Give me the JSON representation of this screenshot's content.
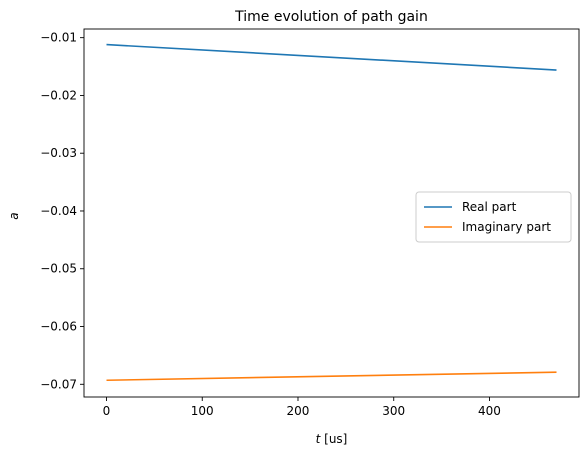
{
  "chart_data": {
    "type": "line",
    "title": "Time evolution of path gain",
    "xlabel_var": "t",
    "xlabel_unit": " [us]",
    "ylabel": "a",
    "xlim": [
      -23.5,
      493.5
    ],
    "ylim": [
      -0.0722,
      -0.0085
    ],
    "xticks": [
      0,
      100,
      200,
      300,
      400
    ],
    "yticks": [
      -0.07,
      -0.06,
      -0.05,
      -0.04,
      -0.03,
      -0.02,
      -0.01
    ],
    "ytick_labels": [
      "−0.07",
      "−0.06",
      "−0.05",
      "−0.04",
      "−0.03",
      "−0.02",
      "−0.01"
    ],
    "grid": false,
    "legend_placement": "center-right",
    "series": [
      {
        "name": "Real part",
        "color": "#1f77b4",
        "x": [
          0,
          470
        ],
        "y": [
          -0.0112,
          -0.0156
        ]
      },
      {
        "name": "Imaginary part",
        "color": "#ff7f0e",
        "x": [
          0,
          470
        ],
        "y": [
          -0.0693,
          -0.0679
        ]
      }
    ]
  }
}
